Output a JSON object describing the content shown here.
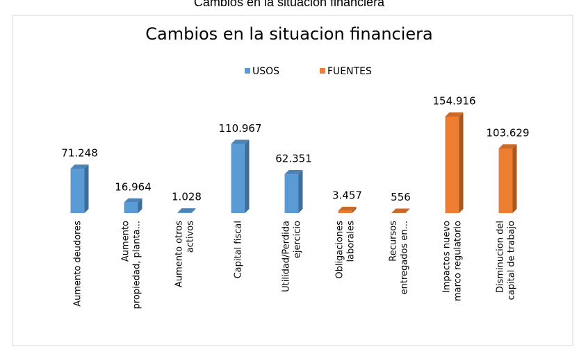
{
  "page_title": "Cambios en la situacion financiera",
  "chart_data": {
    "type": "bar3d",
    "title": "Cambios en la situacion financiera",
    "categories": [
      [
        "Aumento deudores"
      ],
      [
        "Aumento",
        "propiedad, planta..."
      ],
      [
        "Aumento otros",
        "activos"
      ],
      [
        "Capital fiscal"
      ],
      [
        "Utilidad/Perdida",
        "ejercicio"
      ],
      [
        "Obligaciones",
        "laborales"
      ],
      [
        "Recursos",
        "entregados en..."
      ],
      [
        "Impactos nuevo",
        "marco regulatorio"
      ],
      [
        "Disminucion  del",
        "capital de trabajo"
      ]
    ],
    "series": [
      {
        "name": "USOS",
        "color": "#5b9bd5",
        "values": [
          71248,
          16964,
          1028,
          110967,
          62351,
          null,
          null,
          null,
          null
        ],
        "value_labels": [
          "71.248",
          "16.964",
          "1.028",
          "110.967",
          "62.351",
          null,
          null,
          null,
          null
        ]
      },
      {
        "name": "FUENTES",
        "color": "#ed7d31",
        "values": [
          null,
          null,
          null,
          null,
          null,
          3457,
          556,
          154916,
          103629
        ],
        "value_labels": [
          null,
          null,
          null,
          null,
          null,
          "3.457",
          "556",
          "154.916",
          "103.629"
        ]
      }
    ]
  }
}
